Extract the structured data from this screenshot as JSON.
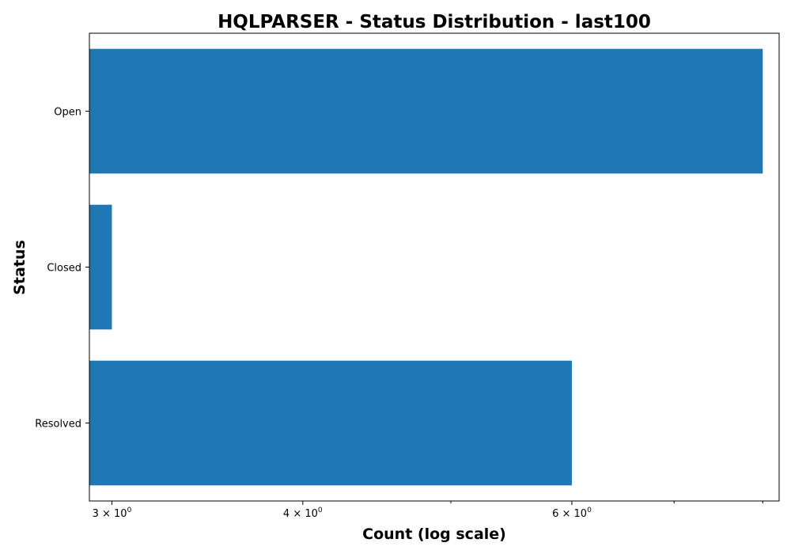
{
  "chart_data": {
    "type": "bar",
    "orientation": "horizontal",
    "title": "HQLPARSER - Status Distribution - last100",
    "xlabel": "Count (log scale)",
    "ylabel": "Status",
    "x_scale": "log",
    "categories": [
      "Open",
      "Closed",
      "Resolved"
    ],
    "values": [
      8,
      3,
      6
    ],
    "xlim": [
      2.9,
      8.2
    ],
    "x_major_ticks": [
      {
        "value": 3,
        "base": "3 × 10",
        "exp": "0"
      },
      {
        "value": 4,
        "base": "4 × 10",
        "exp": "0"
      },
      {
        "value": 6,
        "base": "6 × 10",
        "exp": "0"
      }
    ],
    "x_minor_ticks": [
      5,
      7,
      8
    ],
    "bar_color": "#1f77b4",
    "grid": false,
    "legend": "none"
  }
}
